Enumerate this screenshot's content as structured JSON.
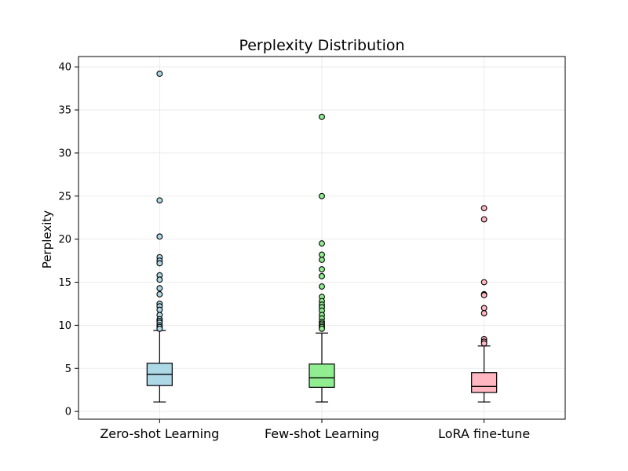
{
  "chart_data": {
    "type": "boxplot",
    "title": "Perplexity Distribution",
    "xlabel": "",
    "ylabel": "Perplexity",
    "ylim": [
      -0.9,
      41.2
    ],
    "yticks": [
      0,
      5,
      10,
      15,
      20,
      25,
      30,
      35,
      40
    ],
    "grid": true,
    "categories": [
      "Zero-shot Learning",
      "Few-shot Learning",
      "LoRA fine-tune"
    ],
    "series": [
      {
        "category": "Zero-shot Learning",
        "color": "#add8e6",
        "whisker_low": 1.1,
        "q1": 3.0,
        "median": 4.3,
        "q3": 5.6,
        "whisker_high": 9.4,
        "outliers": [
          39.2,
          24.5,
          20.3,
          17.9,
          17.5,
          17.2,
          15.8,
          15.3,
          14.3,
          13.6,
          12.5,
          12.2,
          11.8,
          11.2,
          10.7,
          10.5,
          10.3,
          10.0,
          9.8,
          9.6
        ]
      },
      {
        "category": "Few-shot Learning",
        "color": "#90ee90",
        "whisker_low": 1.1,
        "q1": 2.8,
        "median": 3.9,
        "q3": 5.5,
        "whisker_high": 9.1,
        "outliers": [
          34.2,
          25.0,
          19.5,
          18.2,
          17.6,
          16.5,
          15.7,
          14.5,
          13.3,
          12.8,
          12.4,
          12.1,
          11.7,
          11.2,
          10.8,
          10.4,
          10.2,
          10.0,
          9.8,
          9.6
        ]
      },
      {
        "category": "LoRA fine-tune",
        "color": "#ffb6c1",
        "whisker_low": 1.1,
        "q1": 2.2,
        "median": 2.9,
        "q3": 4.5,
        "whisker_high": 7.6,
        "outliers": [
          23.6,
          22.3,
          15.0,
          13.6,
          13.5,
          12.0,
          11.4,
          8.4,
          8.1,
          7.9
        ]
      }
    ]
  }
}
